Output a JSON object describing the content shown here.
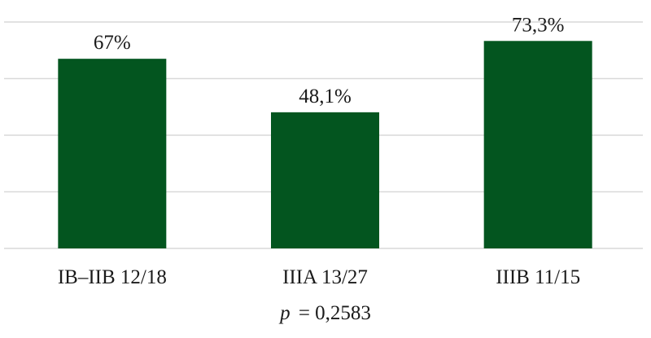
{
  "chart_data": {
    "type": "bar",
    "categories": [
      "IB–IIB 12/18",
      "IIIA 13/27",
      "IIIB 11/15"
    ],
    "values": [
      67,
      48.1,
      73.3
    ],
    "data_labels": [
      "67%",
      "48,1%",
      "73,3%"
    ],
    "title": "",
    "xlabel": "",
    "ylabel": "",
    "ylim": [
      0,
      80
    ],
    "grid": true,
    "y_axis_labels_shown": false,
    "bar_color": "#03551f",
    "annotation": {
      "symbol": "p",
      "operator": "=",
      "value": "0,2583"
    }
  }
}
